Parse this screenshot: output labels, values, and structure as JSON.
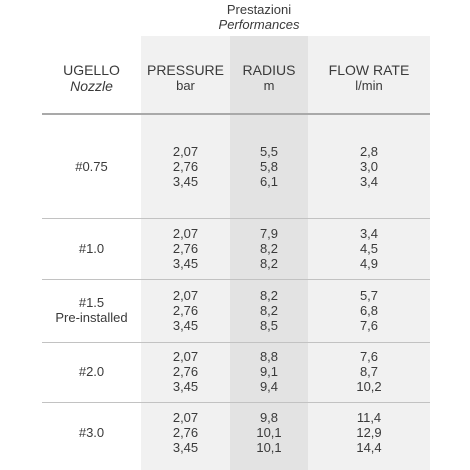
{
  "section_title": {
    "line1": "Prestazioni",
    "line2": "Performances"
  },
  "headers": {
    "nozzle": {
      "label": "UGELLO",
      "sub": "Nozzle"
    },
    "pressure": {
      "label": "PRESSURE",
      "unit": "bar"
    },
    "radius": {
      "label": "RADIUS",
      "unit": "m"
    },
    "flow": {
      "label": "FLOW RATE",
      "unit": "l/min"
    }
  },
  "rows": [
    {
      "nozzle": "#0.75",
      "nozzle_sub": "",
      "pressure": [
        "2,07",
        "2,76",
        "3,45"
      ],
      "radius": [
        "5,5",
        "5,8",
        "6,1"
      ],
      "flow": [
        "2,8",
        "3,0",
        "3,4"
      ]
    },
    {
      "nozzle": "#1.0",
      "nozzle_sub": "",
      "pressure": [
        "2,07",
        "2,76",
        "3,45"
      ],
      "radius": [
        "7,9",
        "8,2",
        "8,2"
      ],
      "flow": [
        "3,4",
        "4,5",
        "4,9"
      ]
    },
    {
      "nozzle": "#1.5",
      "nozzle_sub": "Pre-installed",
      "pressure": [
        "2,07",
        "2,76",
        "3,45"
      ],
      "radius": [
        "8,2",
        "8,2",
        "8,5"
      ],
      "flow": [
        "5,7",
        "6,8",
        "7,6"
      ]
    },
    {
      "nozzle": "#2.0",
      "nozzle_sub": "",
      "pressure": [
        "2,07",
        "2,76",
        "3,45"
      ],
      "radius": [
        "8,8",
        "9,1",
        "9,4"
      ],
      "flow": [
        "7,6",
        "8,7",
        "10,2"
      ]
    },
    {
      "nozzle": "#3.0",
      "nozzle_sub": "",
      "pressure": [
        "2,07",
        "2,76",
        "3,45"
      ],
      "radius": [
        "9,8",
        "10,1",
        "10,1"
      ],
      "flow": [
        "11,4",
        "12,9",
        "14,4"
      ]
    }
  ]
}
